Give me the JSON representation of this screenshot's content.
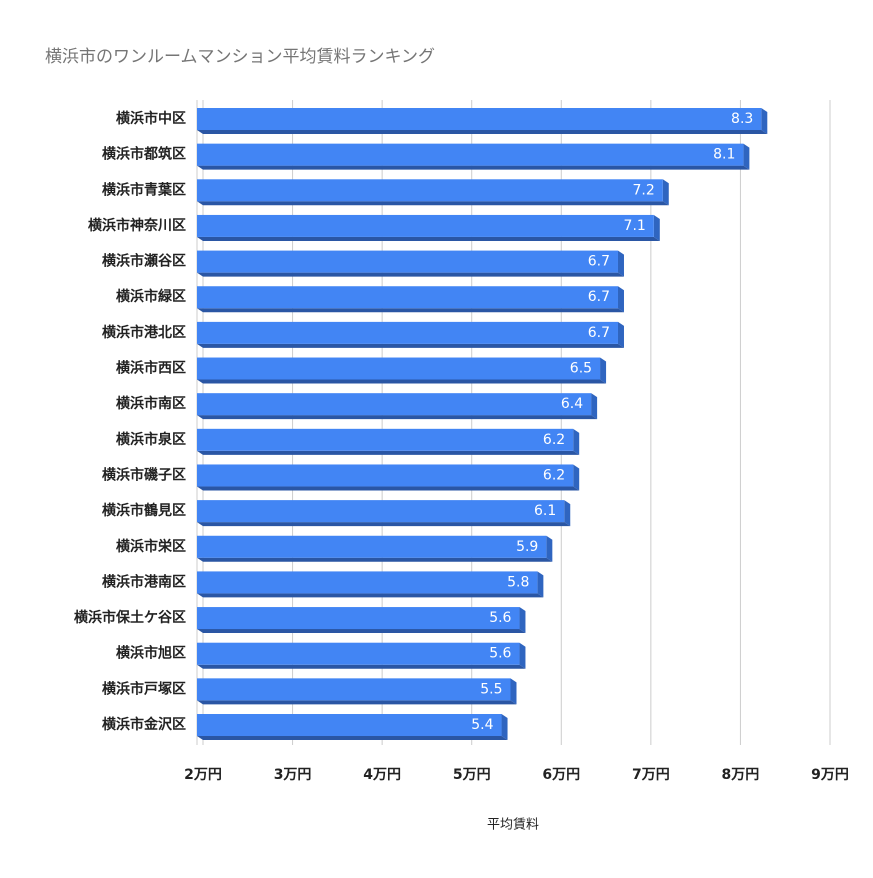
{
  "chart_data": {
    "type": "bar",
    "orientation": "horizontal",
    "title": "横浜市のワンルームマンション平均賃料ランキング",
    "x_label": "平均賃料",
    "categories": [
      "横浜市中区",
      "横浜市都筑区",
      "横浜市青葉区",
      "横浜市神奈川区",
      "横浜市瀬谷区",
      "横浜市緑区",
      "横浜市港北区",
      "横浜市西区",
      "横浜市南区",
      "横浜市泉区",
      "横浜市磯子区",
      "横浜市鶴見区",
      "横浜市栄区",
      "横浜市港南区",
      "横浜市保土ケ谷区",
      "横浜市旭区",
      "横浜市戸塚区",
      "横浜市金沢区"
    ],
    "values": [
      8.3,
      8.1,
      7.2,
      7.1,
      6.7,
      6.7,
      6.7,
      6.5,
      6.4,
      6.2,
      6.2,
      6.1,
      5.9,
      5.8,
      5.6,
      5.6,
      5.5,
      5.4
    ],
    "color": "#4285f4",
    "xlim": [
      2,
      9
    ],
    "xticks": [
      {
        "value": 2,
        "label": "2万円"
      },
      {
        "value": 3,
        "label": "3万円"
      },
      {
        "value": 4,
        "label": "4万円"
      },
      {
        "value": 5,
        "label": "5万円"
      },
      {
        "value": 6,
        "label": "6万円"
      },
      {
        "value": 7,
        "label": "7万円"
      },
      {
        "value": 8,
        "label": "8万円"
      },
      {
        "value": 9,
        "label": "9万円"
      }
    ],
    "grid": true
  }
}
